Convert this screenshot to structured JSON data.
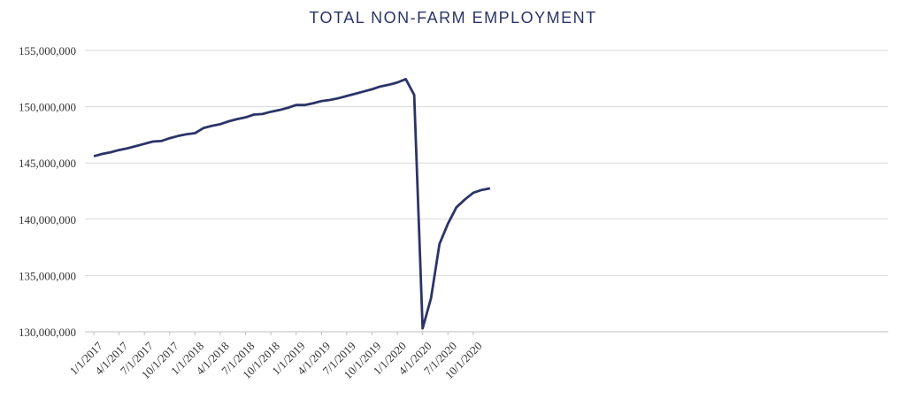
{
  "chart_data": {
    "type": "line",
    "title": "TOTAL NON-FARM EMPLOYMENT",
    "xlabel": "",
    "ylabel": "",
    "ylim": [
      130000000,
      155000000
    ],
    "yticks": [
      130000000,
      135000000,
      140000000,
      145000000,
      150000000,
      155000000
    ],
    "ytick_labels": [
      "130,000,000",
      "135,000,000",
      "140,000,000",
      "145,000,000",
      "150,000,000",
      "155,000,000"
    ],
    "xtick_labels": [
      "1/1/2017",
      "4/1/2017",
      "7/1/2017",
      "10/1/2017",
      "1/1/2018",
      "4/1/2018",
      "7/1/2018",
      "10/1/2018",
      "1/1/2019",
      "4/1/2019",
      "7/1/2019",
      "10/1/2019",
      "1/1/2020",
      "4/1/2020",
      "7/1/2020",
      "10/1/2020"
    ],
    "grid": true,
    "line_color": "#2b3467",
    "x": [
      "1/1/2017",
      "2/1/2017",
      "3/1/2017",
      "4/1/2017",
      "5/1/2017",
      "6/1/2017",
      "7/1/2017",
      "8/1/2017",
      "9/1/2017",
      "10/1/2017",
      "11/1/2017",
      "12/1/2017",
      "1/1/2018",
      "2/1/2018",
      "3/1/2018",
      "4/1/2018",
      "5/1/2018",
      "6/1/2018",
      "7/1/2018",
      "8/1/2018",
      "9/1/2018",
      "10/1/2018",
      "11/1/2018",
      "12/1/2018",
      "1/1/2019",
      "2/1/2019",
      "3/1/2019",
      "4/1/2019",
      "5/1/2019",
      "6/1/2019",
      "7/1/2019",
      "8/1/2019",
      "9/1/2019",
      "10/1/2019",
      "11/1/2019",
      "12/1/2019",
      "1/1/2020",
      "2/1/2020",
      "3/1/2020",
      "4/1/2020",
      "5/1/2020",
      "6/1/2020",
      "7/1/2020",
      "8/1/2020",
      "9/1/2020",
      "10/1/2020",
      "11/1/2020",
      "12/1/2020"
    ],
    "series": [
      {
        "values": [
          145600000,
          145800000,
          145950000,
          146150000,
          146300000,
          146500000,
          146700000,
          146900000,
          146950000,
          147200000,
          147400000,
          147550000,
          147650000,
          148100000,
          148300000,
          148450000,
          148700000,
          148900000,
          149050000,
          149300000,
          149350000,
          149550000,
          149700000,
          149900000,
          150150000,
          150150000,
          150300000,
          150500000,
          150600000,
          150750000,
          150950000,
          151150000,
          151350000,
          151550000,
          151800000,
          151950000,
          152150000,
          152450000,
          151050000,
          130300000,
          133000000,
          137800000,
          139600000,
          141050000,
          141750000,
          142350000,
          142600000,
          142750000
        ]
      }
    ]
  }
}
